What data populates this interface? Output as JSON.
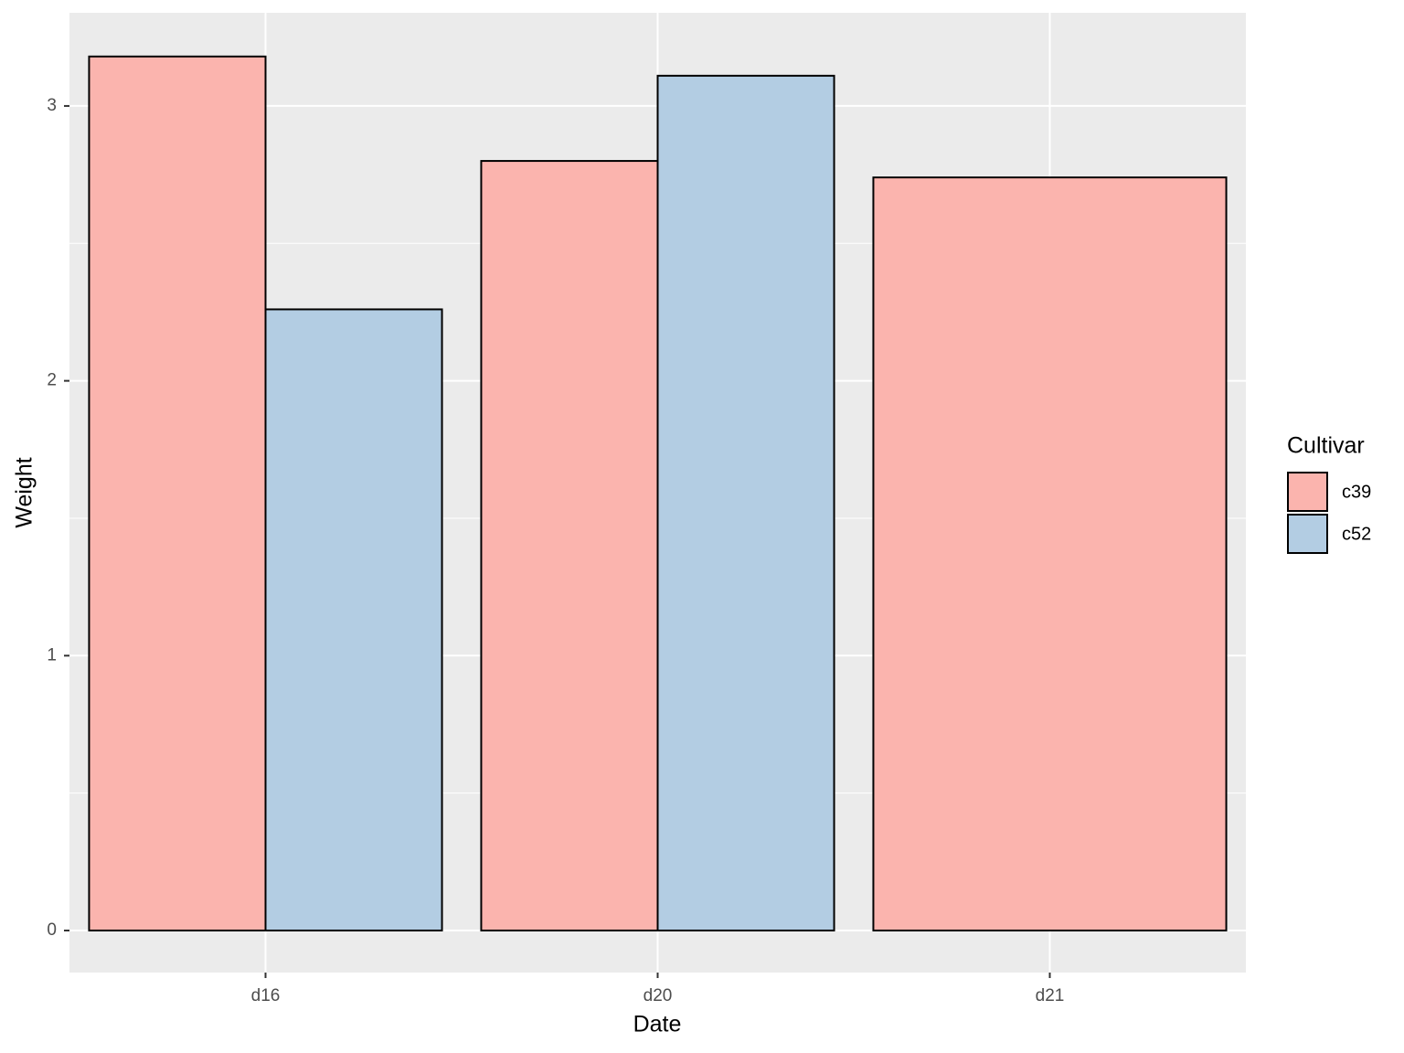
{
  "chart_data": {
    "type": "bar",
    "x_label": "Date",
    "y_label": "Weight",
    "categories": [
      "d16",
      "d20",
      "d21"
    ],
    "series": [
      {
        "name": "c39",
        "color": "#fbb4ae",
        "values": [
          3.18,
          2.8,
          2.74
        ]
      },
      {
        "name": "c52",
        "color": "#b3cde3",
        "values": [
          2.26,
          3.11,
          null
        ]
      }
    ],
    "legend_title": "Cultivar",
    "legend": "right",
    "ylim": [
      -0.153,
      3.339
    ],
    "yticks": [
      0,
      1,
      2,
      3
    ],
    "grid": true
  }
}
